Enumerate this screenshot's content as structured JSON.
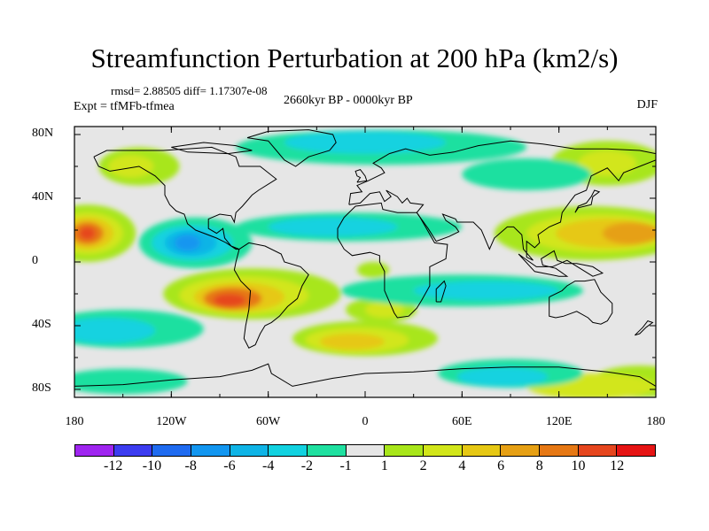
{
  "title": "Streamfunction Perturbation at 200 hPa (km2/s)",
  "stats": "rmsd= 2.88505 diff= 1.17307e-08",
  "experiment": "Expt = tfMFb-tfmea",
  "period": "2660kyr BP - 0000kyr BP",
  "season": "DJF",
  "lat_ticks": [
    "80N",
    "40N",
    "0",
    "40S",
    "80S"
  ],
  "lon_ticks": [
    "180",
    "120W",
    "60W",
    "0",
    "60E",
    "120E",
    "180"
  ],
  "colorbar": {
    "labels": [
      "-12",
      "-10",
      "-8",
      "-6",
      "-4",
      "-2",
      "-1",
      "1",
      "2",
      "4",
      "6",
      "8",
      "10",
      "12"
    ],
    "colors": [
      "#9f25f0",
      "#3c3cf0",
      "#1f6bf0",
      "#1296f0",
      "#0fb4e6",
      "#12d2e0",
      "#1fe0a0",
      "#e6e6e6",
      "#a8e61a",
      "#d2e61a",
      "#e6c814",
      "#e6a014",
      "#e67814",
      "#e6461e",
      "#e61414"
    ]
  },
  "chart_data": {
    "type": "heatmap",
    "title": "Streamfunction Perturbation at 200 hPa (km2/s)",
    "projection": "cylindrical equidistant",
    "lon_range": [
      -180,
      180
    ],
    "lat_range": [
      -90,
      90
    ],
    "grid": false,
    "features": [
      {
        "region": "central Pacific north of equator",
        "value": 11
      },
      {
        "region": "South America / South Atlantic",
        "value": 11
      },
      {
        "region": "western Pacific / Maritime Continent",
        "value": 8
      },
      {
        "region": "east Pacific / Central America",
        "value": -8
      },
      {
        "region": "South Pacific 40S",
        "value": -4
      },
      {
        "region": "Indian Ocean tropics",
        "value": -3
      },
      {
        "region": "North Atlantic / Europe",
        "value": -3
      },
      {
        "region": "southern Indian Ocean",
        "value": -4
      },
      {
        "region": "South Atlantic 50S",
        "value": 6
      }
    ]
  }
}
